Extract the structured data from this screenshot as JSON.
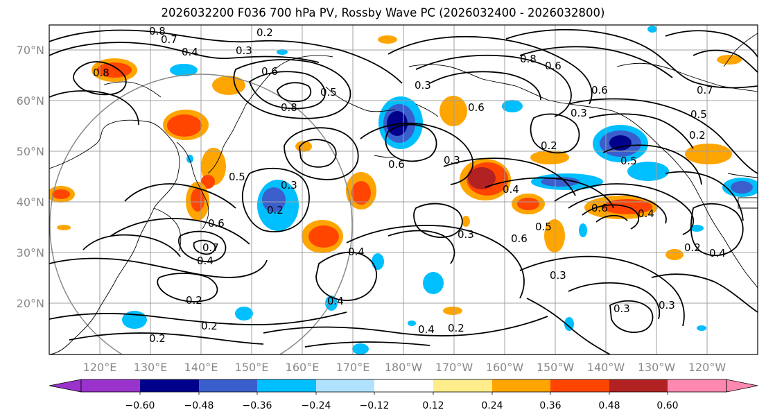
{
  "title": "2026032200 F036 700 hPa PV, Rossby Wave PC (2026032400 - 2026032800)",
  "map": {
    "lat_labels": [
      "70°N",
      "60°N",
      "50°N",
      "40°N",
      "30°N",
      "20°N"
    ],
    "lon_labels": [
      "120°E",
      "130°E",
      "140°E",
      "150°E",
      "160°E",
      "170°E",
      "180°W",
      "170°W",
      "160°W",
      "150°W",
      "140°W",
      "130°W",
      "120°W"
    ],
    "contour_labels": [
      "0.8",
      "0.7",
      "0.4",
      "0.3",
      "0.2",
      "0.6",
      "0.8",
      "0.5",
      "0.3",
      "0.8",
      "0.6",
      "0.6",
      "0.7",
      "0.5",
      "0.3",
      "0.5",
      "0.6",
      "0.2",
      "0.3",
      "0.6",
      "0.4",
      "0.5",
      "0.2",
      "0.6",
      "0.8",
      "0.7",
      "0.4",
      "0.6",
      "0.3",
      "0.4",
      "0.2",
      "0.2",
      "0.4",
      "0.3",
      "0.4",
      "0.2",
      "0.3",
      "0.6",
      "0.5",
      "0.4",
      "0.2",
      "0.4",
      "0.3",
      "0.3",
      "0.2",
      "0.2"
    ]
  },
  "colorbar": {
    "colors": [
      "#9933cc",
      "#00008b",
      "#3a5fcd",
      "#00bfff",
      "#b0e2ff",
      "#ffffff",
      "#ffec8b",
      "#ffa500",
      "#ff4500",
      "#b22222",
      "#ff88b0"
    ],
    "tick_labels": [
      "−0.60",
      "−0.48",
      "−0.36",
      "−0.24",
      "−0.12",
      "0.12",
      "0.24",
      "0.36",
      "0.48",
      "0.60"
    ]
  }
}
